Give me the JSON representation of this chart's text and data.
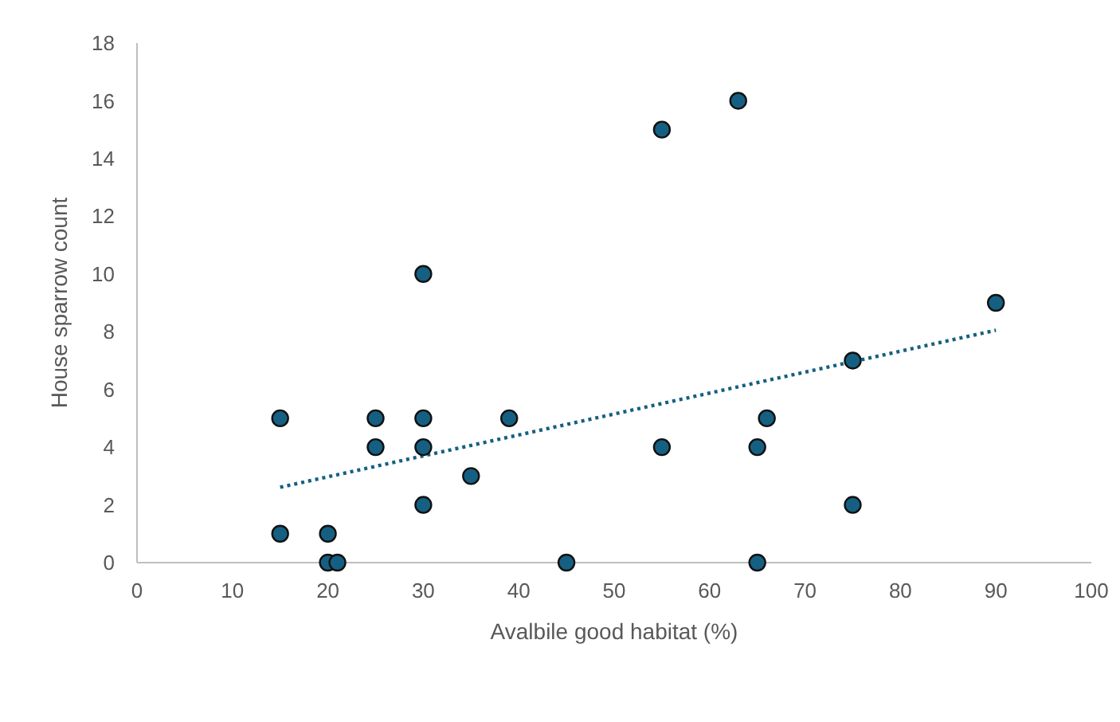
{
  "chart_data": {
    "type": "scatter",
    "xlabel": "Avalbile good habitat (%)",
    "ylabel": "House sparrow count",
    "xlim": [
      0,
      100
    ],
    "xticks": [
      0,
      10,
      20,
      30,
      40,
      50,
      60,
      70,
      80,
      90,
      100
    ],
    "ylim": [
      0,
      18
    ],
    "yticks": [
      0,
      2,
      4,
      6,
      8,
      10,
      12,
      14,
      16,
      18
    ],
    "grid": false,
    "marker": "circle",
    "series": [
      {
        "color": "#156082",
        "x": [
          15,
          15,
          20,
          20,
          21,
          25,
          25,
          30,
          30,
          30,
          30,
          35,
          39,
          45,
          55,
          55,
          63,
          65,
          65,
          66,
          75,
          75,
          90
        ],
        "values": [
          5,
          1,
          1,
          0,
          0,
          5,
          4,
          10,
          5,
          4,
          2,
          3,
          5,
          0,
          15,
          4,
          16,
          4,
          0,
          5,
          7,
          2,
          9
        ]
      },
      {
        "type": "line",
        "color": "#156082",
        "line_style": "dotted",
        "marker": "none",
        "x": [
          15,
          90
        ],
        "values": [
          2.61,
          8.05
        ]
      }
    ]
  }
}
